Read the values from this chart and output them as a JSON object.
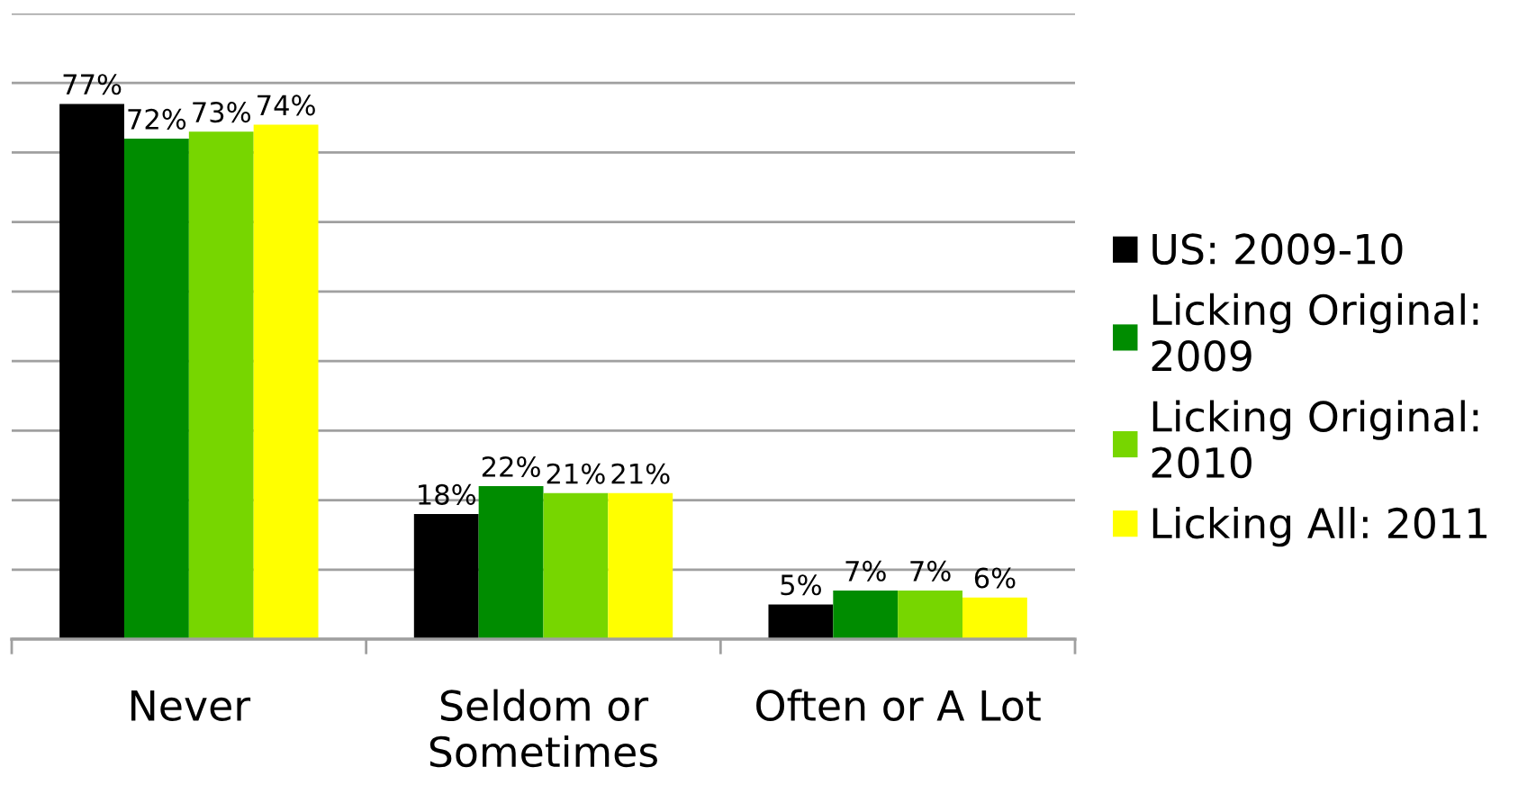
{
  "chart_data": {
    "type": "bar",
    "categories": [
      "Never",
      "Seldom or Sometimes",
      "Often or A Lot"
    ],
    "series": [
      {
        "name": "US: 2009-10",
        "color": "#000000",
        "values": [
          77,
          18,
          5
        ],
        "value_labels": [
          "77%",
          "18%",
          "5%"
        ]
      },
      {
        "name": "Licking Original: 2009",
        "color": "#008c00",
        "values": [
          72,
          22,
          7
        ],
        "value_labels": [
          "72%",
          "22%",
          "7%"
        ]
      },
      {
        "name": "Licking Original: 2010",
        "color": "#77d600",
        "values": [
          73,
          21,
          7
        ],
        "value_labels": [
          "73%",
          "21%",
          "7%"
        ]
      },
      {
        "name": "Licking All: 2011",
        "color": "#ffff00",
        "values": [
          74,
          21,
          6
        ],
        "value_labels": [
          "74%",
          "21%",
          "6%"
        ]
      }
    ],
    "ylim": [
      0,
      90
    ],
    "yticks": [
      {
        "value": 0,
        "label": null
      },
      {
        "value": 10,
        "label": null
      },
      {
        "value": 20,
        "label": null
      },
      {
        "value": 30,
        "label": null
      },
      {
        "value": 40,
        "label": null
      },
      {
        "value": 50,
        "label": null
      },
      {
        "value": 60,
        "label": null
      },
      {
        "value": 70,
        "label": null
      },
      {
        "value": 80,
        "label": null
      },
      {
        "value": 90,
        "label": null
      }
    ],
    "grid": "y",
    "legend": "right",
    "tick_labels": "x"
  }
}
